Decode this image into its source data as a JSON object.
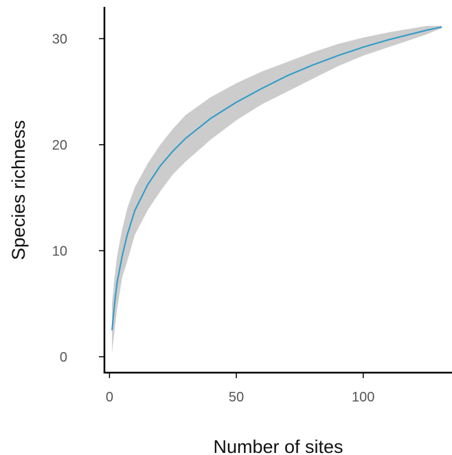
{
  "chart_data": {
    "type": "line",
    "title": "",
    "xlabel": "Number of sites",
    "ylabel": "Species richness",
    "xlim": [
      -2,
      135
    ],
    "ylim": [
      -1.5,
      33
    ],
    "x_ticks": [
      0,
      50,
      100
    ],
    "y_ticks": [
      0,
      10,
      20,
      30
    ],
    "grid": false,
    "legend": "none",
    "colors": {
      "line": "#2b9ac9",
      "band": "#cccccc",
      "axis": "#000000",
      "tick_label": "#555555",
      "axis_title": "#111111"
    },
    "series": [
      {
        "x": [
          1,
          2,
          3,
          5,
          7,
          10,
          15,
          20,
          25,
          30,
          40,
          50,
          60,
          70,
          80,
          90,
          100,
          110,
          120,
          125,
          131
        ],
        "y": [
          2.5,
          5.0,
          7.0,
          9.5,
          11.5,
          13.8,
          16.2,
          18.0,
          19.4,
          20.6,
          22.5,
          24.0,
          25.3,
          26.5,
          27.5,
          28.4,
          29.2,
          29.9,
          30.5,
          30.8,
          31.1
        ],
        "lower": [
          0.4,
          2.5,
          4.5,
          7.5,
          9.0,
          11.5,
          13.8,
          15.6,
          17.2,
          18.4,
          20.5,
          22.3,
          23.8,
          25.0,
          26.2,
          27.4,
          28.4,
          29.2,
          30.0,
          30.4,
          31.0
        ],
        "upper": [
          5.0,
          7.5,
          9.5,
          12.0,
          14.0,
          16.0,
          18.2,
          20.0,
          21.5,
          22.8,
          24.5,
          25.8,
          26.9,
          27.8,
          28.7,
          29.5,
          30.1,
          30.6,
          31.0,
          31.2,
          31.2
        ]
      }
    ]
  }
}
